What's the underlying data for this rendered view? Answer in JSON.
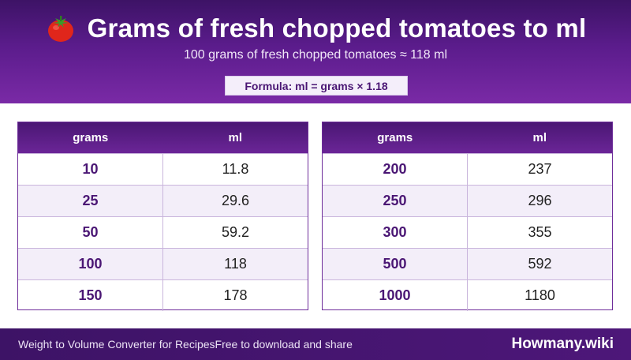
{
  "header": {
    "icon": "tomato-icon",
    "title": "Grams of fresh chopped tomatoes to ml",
    "subtitle": "100 grams of fresh chopped tomatoes ≈ 118 ml",
    "formula": "Formula: ml = grams × 1.18"
  },
  "tables": {
    "col_grams": "grams",
    "col_ml": "ml",
    "left": [
      {
        "grams": "10",
        "ml": "11.8"
      },
      {
        "grams": "25",
        "ml": "29.6"
      },
      {
        "grams": "50",
        "ml": "59.2"
      },
      {
        "grams": "100",
        "ml": "118"
      },
      {
        "grams": "150",
        "ml": "178"
      }
    ],
    "right": [
      {
        "grams": "200",
        "ml": "237"
      },
      {
        "grams": "250",
        "ml": "296"
      },
      {
        "grams": "300",
        "ml": "355"
      },
      {
        "grams": "500",
        "ml": "592"
      },
      {
        "grams": "1000",
        "ml": "1180"
      }
    ]
  },
  "footer": {
    "left_text": "Weight to Volume Converter for RecipesFree to download and share",
    "brand": "Howmany.wiki"
  },
  "colors": {
    "accent": "#5b1c8c",
    "header_text": "#ffffff",
    "grams_text": "#4a1674"
  }
}
